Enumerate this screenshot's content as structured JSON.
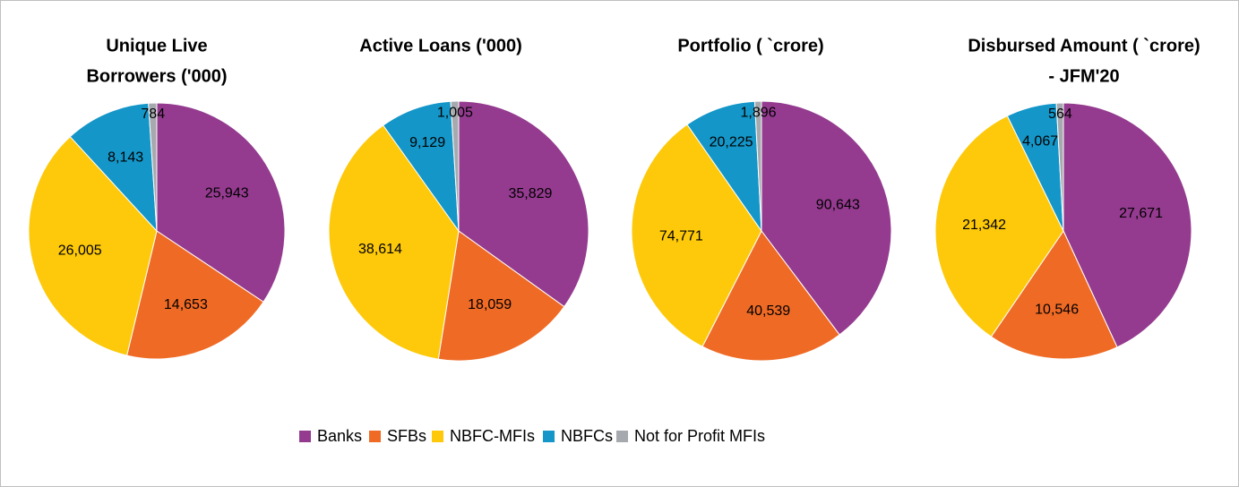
{
  "chart_data": [
    {
      "type": "pie",
      "title": [
        "Unique Live",
        "Borrowers ('000)"
      ],
      "categories": [
        "Banks",
        "SFBs",
        "NBFC-MFIs",
        "NBFCs",
        "Not for Profit MFIs"
      ],
      "values": [
        25943,
        14653,
        26005,
        8143,
        784
      ],
      "value_labels": [
        "25,943",
        "14,653",
        "26,005",
        "8,143",
        "784"
      ],
      "colors": [
        "#943b8f",
        "#ef6a25",
        "#fdc90a",
        "#1496c8",
        "#a6a9ad"
      ]
    },
    {
      "type": "pie",
      "title": [
        "Active Loans ('000)"
      ],
      "categories": [
        "Banks",
        "SFBs",
        "NBFC-MFIs",
        "NBFCs",
        "Not for Profit MFIs"
      ],
      "values": [
        35829,
        18059,
        38614,
        9129,
        1005
      ],
      "value_labels": [
        "35,829",
        "18,059",
        "38,614",
        "9,129",
        "1,005"
      ],
      "colors": [
        "#943b8f",
        "#ef6a25",
        "#fdc90a",
        "#1496c8",
        "#a6a9ad"
      ]
    },
    {
      "type": "pie",
      "title": [
        "Portfolio ( `crore)"
      ],
      "categories": [
        "Banks",
        "SFBs",
        "NBFC-MFIs",
        "NBFCs",
        "Not for Profit MFIs"
      ],
      "values": [
        90643,
        40539,
        74771,
        20225,
        1896
      ],
      "value_labels": [
        "90,643",
        "40,539",
        "74,771",
        "20,225",
        "1,896"
      ],
      "colors": [
        "#943b8f",
        "#ef6a25",
        "#fdc90a",
        "#1496c8",
        "#a6a9ad"
      ]
    },
    {
      "type": "pie",
      "title": [
        "Disbursed Amount ( `crore)",
        " - JFM'20"
      ],
      "categories": [
        "Banks",
        "SFBs",
        "NBFC-MFIs",
        "NBFCs",
        "Not for Profit MFIs"
      ],
      "values": [
        27671,
        10546,
        21342,
        4067,
        564
      ],
      "value_labels": [
        "27,671",
        "10,546",
        "21,342",
        "4,067",
        "564"
      ],
      "colors": [
        "#943b8f",
        "#ef6a25",
        "#fdc90a",
        "#1496c8",
        "#a6a9ad"
      ]
    }
  ]
}
